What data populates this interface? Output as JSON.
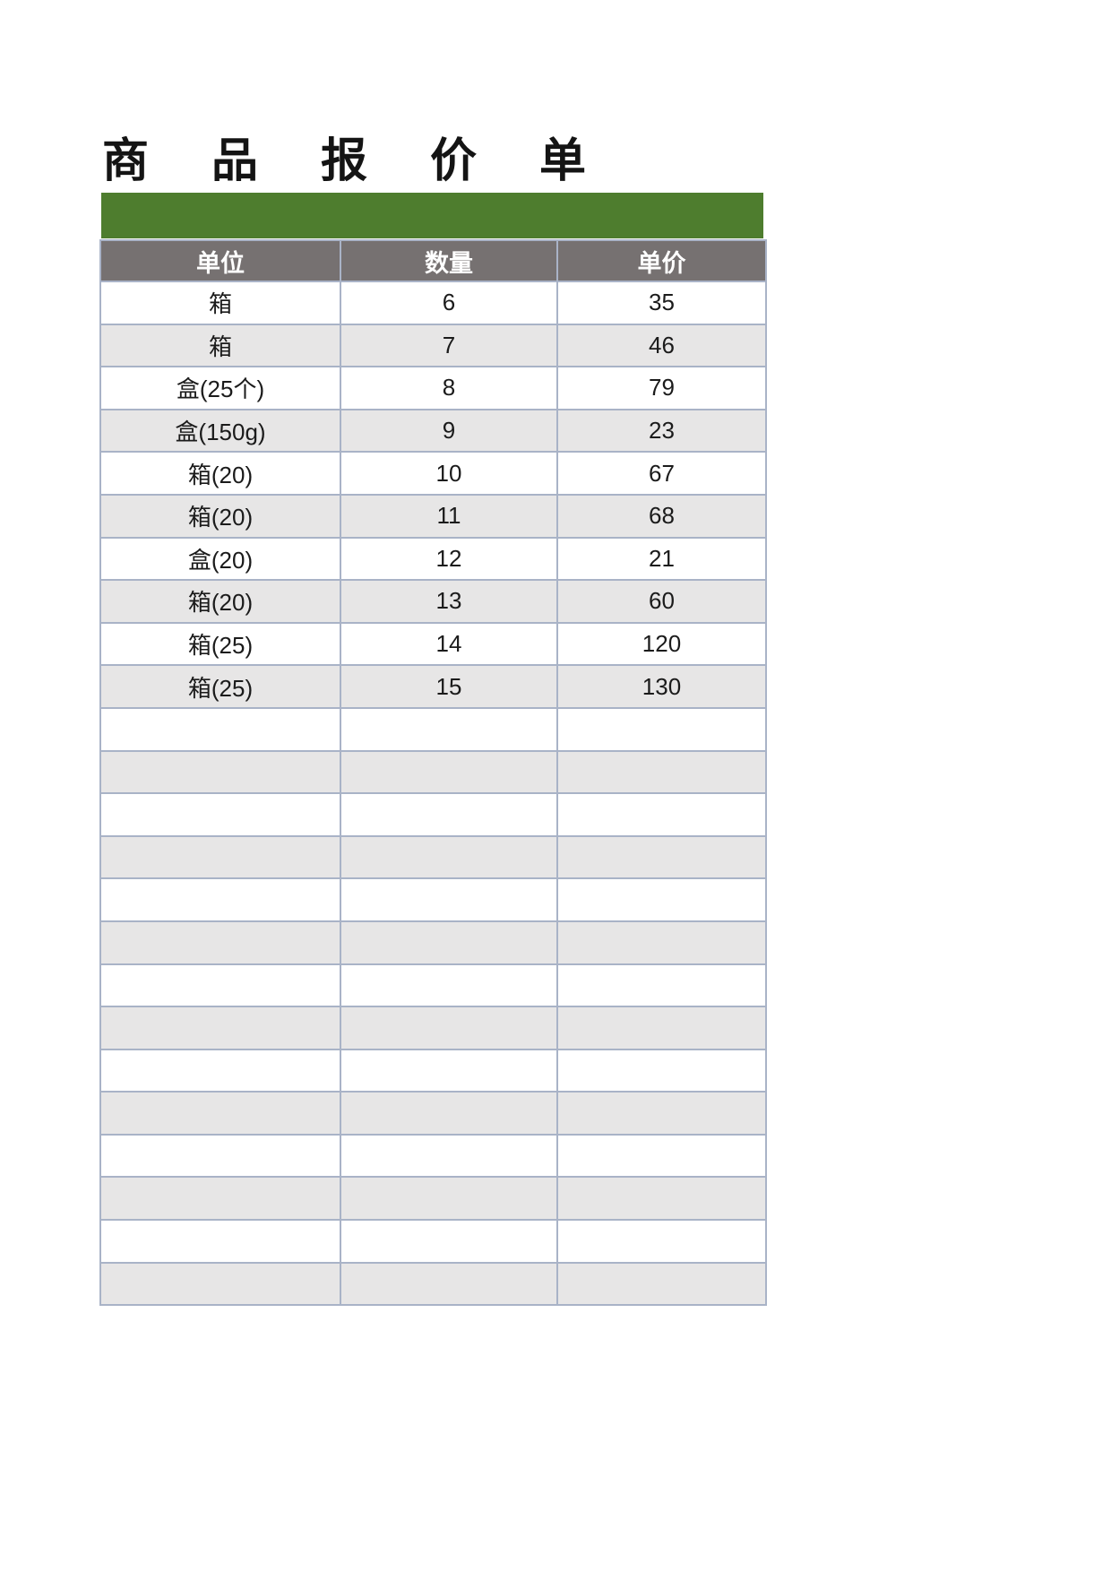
{
  "page": {
    "title": "商品报价单"
  },
  "banner": {
    "color": "#4e7d2e"
  },
  "table": {
    "columns": [
      "单位",
      "数量",
      "单价"
    ],
    "rows": [
      {
        "unit": "箱",
        "qty": "6",
        "price": "35"
      },
      {
        "unit": "箱",
        "qty": "7",
        "price": "46"
      },
      {
        "unit": "盒(25个)",
        "qty": "8",
        "price": "79"
      },
      {
        "unit": "盒(150g)",
        "qty": "9",
        "price": "23"
      },
      {
        "unit": "箱(20)",
        "qty": "10",
        "price": "67"
      },
      {
        "unit": "箱(20)",
        "qty": "11",
        "price": "68"
      },
      {
        "unit": "盒(20)",
        "qty": "12",
        "price": "21"
      },
      {
        "unit": "箱(20)",
        "qty": "13",
        "price": "60"
      },
      {
        "unit": "箱(25)",
        "qty": "14",
        "price": "120"
      },
      {
        "unit": "箱(25)",
        "qty": "15",
        "price": "130"
      }
    ],
    "empty_row_count": 14
  },
  "colors": {
    "banner_green": "#4e7d2e",
    "header_gray": "#767171",
    "alt_row_gray": "#e7e6e6",
    "grid_border": "#a9b3c7",
    "text": "#1b1b1b"
  }
}
